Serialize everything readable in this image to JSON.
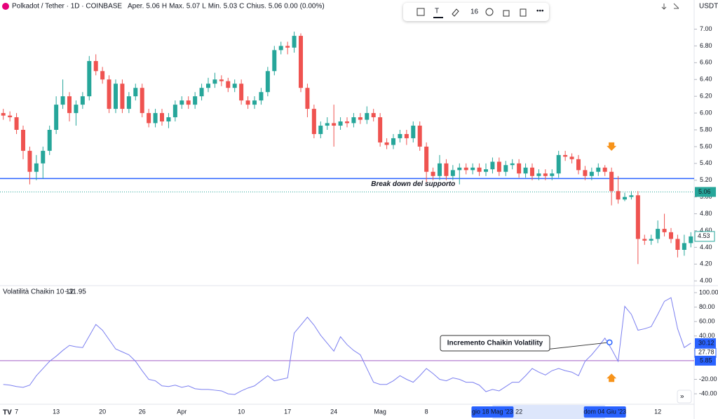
{
  "chart_data": {
    "type": "candlestick",
    "title": "Polkadot / Tether · 1D · COINBASE",
    "ohlc_legend": [
      "Aper.",
      "5.06",
      "H",
      "Max.",
      "5.07",
      "L",
      "Min.",
      "5.03",
      "C",
      "Chius.",
      "5.06",
      "0.00",
      "(0.00%)"
    ],
    "currency": "USDT",
    "toolbar_size": "16",
    "up_color": "#26a69a",
    "down_color": "#ef5350",
    "categories": [
      null,
      null,
      "7",
      null,
      null,
      null,
      null,
      null,
      "13",
      null,
      null,
      null,
      null,
      null,
      null,
      "20",
      null,
      null,
      null,
      null,
      null,
      "26",
      null,
      null,
      null,
      null,
      null,
      "Apr",
      null,
      null,
      null,
      null,
      null,
      null,
      null,
      null,
      "10",
      null,
      null,
      null,
      null,
      null,
      null,
      "17",
      null,
      null,
      null,
      null,
      null,
      null,
      "24",
      null,
      null,
      null,
      null,
      null,
      null,
      "Mag",
      null,
      null,
      null,
      null,
      null,
      null,
      "8",
      null,
      null,
      null,
      null,
      null,
      null,
      null,
      null,
      null,
      null,
      null,
      null,
      null,
      "22",
      null,
      null,
      null,
      null,
      null,
      null,
      null,
      null,
      null,
      null,
      null,
      null,
      null,
      null,
      null,
      null,
      null,
      null,
      null,
      null,
      "12",
      null,
      null,
      null,
      null,
      null
    ],
    "x_highlights": [
      {
        "index": 74,
        "label": "gio 18 Mag '23"
      },
      {
        "index": 91,
        "label": "dom 04 Giu '23"
      }
    ],
    "candles": [
      [
        6.0,
        6.05,
        5.92,
        5.97
      ],
      [
        5.97,
        6.02,
        5.9,
        5.95
      ],
      [
        5.95,
        6.0,
        5.75,
        5.8
      ],
      [
        5.8,
        5.85,
        5.45,
        5.55
      ],
      [
        5.55,
        5.6,
        5.15,
        5.3
      ],
      [
        5.3,
        5.5,
        5.2,
        5.4
      ],
      [
        5.4,
        5.6,
        5.22,
        5.55
      ],
      [
        5.55,
        5.85,
        5.5,
        5.8
      ],
      [
        5.8,
        6.2,
        5.75,
        6.1
      ],
      [
        6.1,
        6.4,
        6.05,
        6.2
      ],
      [
        6.2,
        6.25,
        5.9,
        6.0
      ],
      [
        6.0,
        6.15,
        5.85,
        6.1
      ],
      [
        6.1,
        6.25,
        6.05,
        6.2
      ],
      [
        6.2,
        6.68,
        6.15,
        6.62
      ],
      [
        6.62,
        6.7,
        6.45,
        6.5
      ],
      [
        6.5,
        6.55,
        6.35,
        6.4
      ],
      [
        6.4,
        6.45,
        6.0,
        6.05
      ],
      [
        6.05,
        6.4,
        6.0,
        6.35
      ],
      [
        6.35,
        6.4,
        6.0,
        6.05
      ],
      [
        6.05,
        6.25,
        6.0,
        6.2
      ],
      [
        6.2,
        6.35,
        6.15,
        6.3
      ],
      [
        6.3,
        6.35,
        5.95,
        6.0
      ],
      [
        6.0,
        6.05,
        5.83,
        5.88
      ],
      [
        5.88,
        6.05,
        5.83,
        6.0
      ],
      [
        6.0,
        6.05,
        5.85,
        5.9
      ],
      [
        5.9,
        6.0,
        5.82,
        5.95
      ],
      [
        5.95,
        6.15,
        5.9,
        6.1
      ],
      [
        6.1,
        6.2,
        6.05,
        6.15
      ],
      [
        6.15,
        6.2,
        6.05,
        6.1
      ],
      [
        6.1,
        6.25,
        6.05,
        6.2
      ],
      [
        6.2,
        6.35,
        6.15,
        6.3
      ],
      [
        6.3,
        6.42,
        6.25,
        6.35
      ],
      [
        6.35,
        6.48,
        6.3,
        6.4
      ],
      [
        6.4,
        6.45,
        6.32,
        6.38
      ],
      [
        6.38,
        6.42,
        6.25,
        6.3
      ],
      [
        6.3,
        6.4,
        6.25,
        6.35
      ],
      [
        6.35,
        6.4,
        6.1,
        6.15
      ],
      [
        6.15,
        6.2,
        6.05,
        6.1
      ],
      [
        6.1,
        6.2,
        6.05,
        6.15
      ],
      [
        6.15,
        6.3,
        6.1,
        6.25
      ],
      [
        6.25,
        6.55,
        6.2,
        6.5
      ],
      [
        6.5,
        6.8,
        6.45,
        6.75
      ],
      [
        6.75,
        6.85,
        6.7,
        6.8
      ],
      [
        6.8,
        6.85,
        6.7,
        6.78
      ],
      [
        6.78,
        6.97,
        6.72,
        6.92
      ],
      [
        6.92,
        6.95,
        6.25,
        6.3
      ],
      [
        6.3,
        6.35,
        5.95,
        6.05
      ],
      [
        6.05,
        6.1,
        5.7,
        5.75
      ],
      [
        5.75,
        5.9,
        5.7,
        5.85
      ],
      [
        5.85,
        5.95,
        5.8,
        5.88
      ],
      [
        5.88,
        6.1,
        5.6,
        5.85
      ],
      [
        5.85,
        5.95,
        5.8,
        5.9
      ],
      [
        5.9,
        5.95,
        5.83,
        5.88
      ],
      [
        5.88,
        6.0,
        5.83,
        5.95
      ],
      [
        5.95,
        6.0,
        5.87,
        5.92
      ],
      [
        5.92,
        6.08,
        5.87,
        6.0
      ],
      [
        6.0,
        6.05,
        5.9,
        5.95
      ],
      [
        5.95,
        6.0,
        5.6,
        5.65
      ],
      [
        5.65,
        5.7,
        5.57,
        5.62
      ],
      [
        5.62,
        5.75,
        5.57,
        5.7
      ],
      [
        5.7,
        5.8,
        5.65,
        5.75
      ],
      [
        5.75,
        5.8,
        5.62,
        5.7
      ],
      [
        5.7,
        5.9,
        5.65,
        5.85
      ],
      [
        5.85,
        5.9,
        5.55,
        5.6
      ],
      [
        5.6,
        5.65,
        5.18,
        5.3
      ],
      [
        5.3,
        5.35,
        5.2,
        5.25
      ],
      [
        5.25,
        5.5,
        5.2,
        5.4
      ],
      [
        5.4,
        5.45,
        5.2,
        5.25
      ],
      [
        5.25,
        5.38,
        5.2,
        5.32
      ],
      [
        5.32,
        5.4,
        5.15,
        5.35
      ],
      [
        5.35,
        5.4,
        5.27,
        5.32
      ],
      [
        5.32,
        5.4,
        5.27,
        5.35
      ],
      [
        5.35,
        5.4,
        5.25,
        5.3
      ],
      [
        5.3,
        5.4,
        5.25,
        5.33
      ],
      [
        5.33,
        5.47,
        5.28,
        5.42
      ],
      [
        5.42,
        5.47,
        5.25,
        5.3
      ],
      [
        5.3,
        5.43,
        5.25,
        5.38
      ],
      [
        5.38,
        5.45,
        5.33,
        5.4
      ],
      [
        5.4,
        5.45,
        5.23,
        5.28
      ],
      [
        5.28,
        5.4,
        5.23,
        5.35
      ],
      [
        5.35,
        5.4,
        5.2,
        5.25
      ],
      [
        5.25,
        5.33,
        5.2,
        5.28
      ],
      [
        5.28,
        5.33,
        5.2,
        5.25
      ],
      [
        5.25,
        5.33,
        5.2,
        5.28
      ],
      [
        5.28,
        5.55,
        5.23,
        5.5
      ],
      [
        5.5,
        5.55,
        5.43,
        5.48
      ],
      [
        5.48,
        5.52,
        5.4,
        5.45
      ],
      [
        5.45,
        5.5,
        5.27,
        5.32
      ],
      [
        5.32,
        5.37,
        5.2,
        5.25
      ],
      [
        5.25,
        5.35,
        5.2,
        5.3
      ],
      [
        5.3,
        5.4,
        5.25,
        5.35
      ],
      [
        5.35,
        5.38,
        5.25,
        5.3
      ],
      [
        5.3,
        5.35,
        4.9,
        5.07
      ],
      [
        5.07,
        5.25,
        4.92,
        4.97
      ],
      [
        4.97,
        5.05,
        4.95,
        5.0
      ],
      [
        5.0,
        5.07,
        4.97,
        5.02
      ],
      [
        5.02,
        5.07,
        4.2,
        4.5
      ],
      [
        4.5,
        4.55,
        4.43,
        4.48
      ],
      [
        4.48,
        4.55,
        4.43,
        4.5
      ],
      [
        4.5,
        4.72,
        4.45,
        4.62
      ],
      [
        4.62,
        4.8,
        4.53,
        4.58
      ],
      [
        4.58,
        4.63,
        4.45,
        4.5
      ],
      [
        4.5,
        4.55,
        4.28,
        4.37
      ],
      [
        4.37,
        4.55,
        4.3,
        4.45
      ],
      [
        4.45,
        4.58,
        4.4,
        4.53
      ]
    ],
    "ylim": [
      3.96,
      7.18
    ],
    "yticks": [
      {
        "value": 4,
        "label": "4.00"
      },
      {
        "value": 4.2,
        "label": "4.20"
      },
      {
        "value": 4.4,
        "label": "4.40"
      },
      {
        "value": 4.6,
        "label": "4.60"
      },
      {
        "value": 4.8,
        "label": "4.80"
      },
      {
        "value": 5,
        "label": "5.00"
      },
      {
        "value": 5.2,
        "label": "5.20"
      },
      {
        "value": 5.4,
        "label": "5.40"
      },
      {
        "value": 5.6,
        "label": "5.60"
      },
      {
        "value": 5.8,
        "label": "5.80"
      },
      {
        "value": 6,
        "label": "6.00"
      },
      {
        "value": 6.2,
        "label": "6.20"
      },
      {
        "value": 6.4,
        "label": "6.40"
      },
      {
        "value": 6.6,
        "label": "6.60"
      },
      {
        "value": 6.8,
        "label": "6.80"
      },
      {
        "value": 7,
        "label": "7.00"
      }
    ],
    "support_line": {
      "value": 5.22,
      "color": "#2962ff",
      "label": "Break down del supporto"
    },
    "price_line": {
      "value": 5.06,
      "color": "#26a69a"
    },
    "last_price": 4.53,
    "indicator": {
      "title": "Volatilità Chaikin 10 12",
      "value_label": "−31.95",
      "name": "Volatilità Chaikin",
      "color": "#7b7ff0",
      "axis": "y2",
      "values": [
        -27,
        -28,
        -30,
        -31,
        -28,
        -15,
        -5,
        5,
        12,
        20,
        27,
        25,
        24,
        40,
        56,
        48,
        35,
        22,
        18,
        14,
        5,
        -8,
        -20,
        -22,
        -29,
        -30,
        -28,
        -31,
        -29,
        -33,
        -34,
        -34,
        -35,
        -36,
        -40,
        -41,
        -36,
        -32,
        -29,
        -22,
        -15,
        -22,
        -20,
        -18,
        44,
        55,
        66,
        55,
        41,
        30,
        19,
        39,
        28,
        20,
        14,
        -5,
        -24,
        -27,
        -27,
        -22,
        -15,
        -20,
        -24,
        -15,
        -5,
        -12,
        -20,
        -22,
        -18,
        -20,
        -24,
        -24,
        -28,
        -37,
        -34,
        -36,
        -30,
        -24,
        -24,
        -15,
        -5,
        -10,
        -14,
        -8,
        -5,
        -8,
        -10,
        -15,
        5,
        14,
        25,
        37,
        22,
        5,
        81,
        70,
        48,
        50,
        53,
        70,
        88,
        93,
        50,
        24,
        30.12
      ],
      "level": {
        "value": 5.85,
        "color": "#a25fc8"
      },
      "extra_label": 27.78,
      "annotation": "Incremento Chaikin Volatility"
    },
    "y2lim": [
      -50.6,
      108.7
    ],
    "y2ticks": [
      {
        "value": -40,
        "label": "-40.00"
      },
      {
        "value": -20,
        "label": "-20.00"
      },
      {
        "value": 20,
        "label": "20.00"
      },
      {
        "value": 40,
        "label": "40.00"
      },
      {
        "value": 60,
        "label": "60.00"
      },
      {
        "value": 80,
        "label": "80.00"
      },
      {
        "value": 100,
        "label": "100.00"
      }
    ]
  }
}
